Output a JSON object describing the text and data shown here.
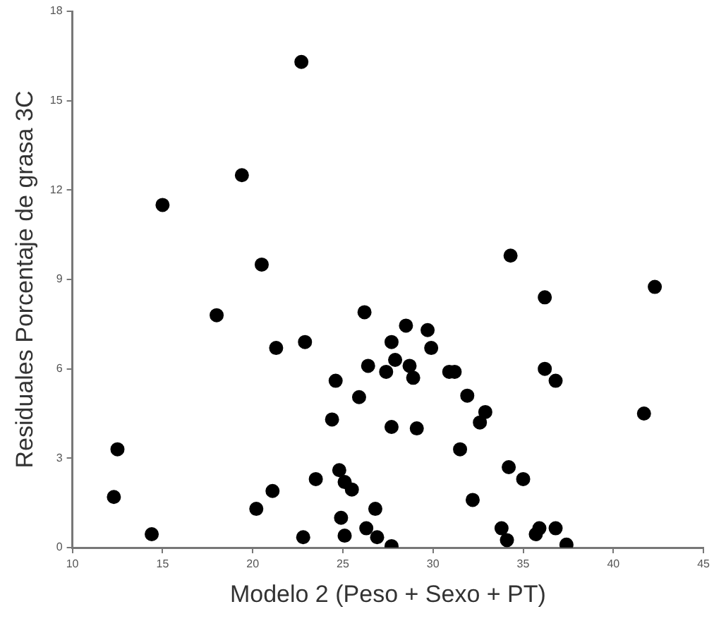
{
  "chart_data": {
    "type": "scatter",
    "xlabel": "Modelo 2 (Peso + Sexo + PT)",
    "ylabel": "Residuales Porcentaje de grasa 3C",
    "xlim": [
      10,
      45
    ],
    "xticks": [
      10,
      15,
      20,
      25,
      30,
      35,
      40,
      45
    ],
    "ylim": [
      0,
      18
    ],
    "yticks": [
      0,
      3,
      6,
      9,
      12,
      15,
      18
    ],
    "grid": false,
    "legend": false,
    "marker": "circle",
    "series": [
      {
        "color": "#000000",
        "x": [
          22.7,
          15.0,
          19.4,
          20.5,
          18.0,
          34.3,
          36.2,
          42.3,
          26.2,
          21.3,
          22.9,
          24.6,
          24.4,
          12.5,
          12.3,
          14.4,
          20.2,
          21.1,
          23.5,
          22.8,
          24.8,
          25.1,
          24.9,
          25.1,
          28.5,
          29.7,
          27.7,
          29.9,
          26.4,
          27.9,
          28.7,
          27.4,
          28.9,
          30.9,
          31.2,
          36.2,
          36.8,
          25.9,
          31.9,
          32.9,
          32.6,
          27.7,
          29.1,
          41.7,
          31.5,
          34.2,
          35.0,
          25.5,
          32.2,
          26.8,
          26.3,
          26.9,
          27.7,
          33.8,
          34.1,
          35.7,
          35.9,
          36.8,
          37.4
        ],
        "values": [
          16.3,
          11.5,
          12.5,
          9.5,
          7.8,
          9.8,
          8.4,
          8.75,
          7.9,
          6.7,
          6.9,
          5.6,
          4.3,
          3.3,
          1.7,
          0.45,
          1.3,
          1.9,
          2.3,
          0.35,
          2.6,
          2.2,
          1.0,
          0.4,
          7.45,
          7.3,
          6.9,
          6.7,
          6.1,
          6.3,
          6.1,
          5.9,
          5.7,
          5.9,
          5.9,
          6.0,
          5.6,
          5.05,
          5.1,
          4.55,
          4.2,
          4.05,
          4.0,
          4.5,
          3.3,
          2.7,
          2.3,
          1.95,
          1.6,
          1.3,
          0.65,
          0.35,
          0.05,
          0.65,
          0.25,
          0.45,
          0.65,
          0.65,
          0.1
        ]
      }
    ]
  }
}
